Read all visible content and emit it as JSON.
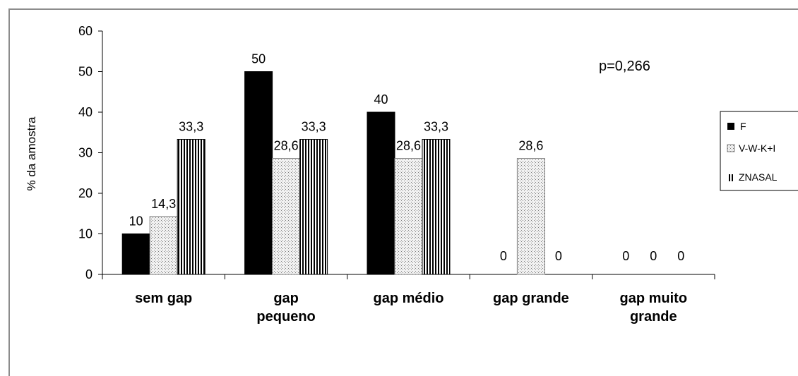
{
  "chart_data": {
    "type": "bar",
    "categories": [
      [
        "sem gap"
      ],
      [
        "gap",
        "pequeno"
      ],
      [
        "gap médio"
      ],
      [
        "gap grande"
      ],
      [
        "gap muito",
        "grande"
      ]
    ],
    "series": [
      {
        "name": "F",
        "values": [
          10,
          50,
          40,
          0,
          0
        ],
        "labels": [
          "10",
          "50",
          "40",
          "0",
          "0"
        ],
        "color": "#000000",
        "pattern": "solid"
      },
      {
        "name": "V-W-K+I",
        "values": [
          14.3,
          28.6,
          28.6,
          28.6,
          0
        ],
        "labels": [
          "14,3",
          "28,6",
          "28,6",
          "28,6",
          "0"
        ],
        "color": "#e8e8e8",
        "pattern": "dots"
      },
      {
        "name": "ZNASAL",
        "values": [
          33.3,
          33.3,
          33.3,
          0,
          0
        ],
        "labels": [
          "33,3",
          "33,3",
          "33,3",
          "0",
          "0"
        ],
        "color": "#000000",
        "pattern": "vstripes"
      }
    ],
    "ylabel": "% da amostra",
    "ylim": [
      0,
      60
    ],
    "yticks": [
      0,
      10,
      20,
      30,
      40,
      50,
      60
    ],
    "annotation": "p=0,266",
    "legend_position": "right"
  }
}
